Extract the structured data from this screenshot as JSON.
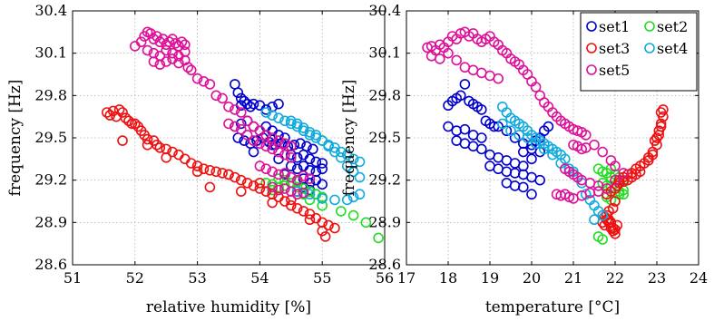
{
  "chart_data": [
    {
      "type": "scatter",
      "xlabel": "relative humidity [%]",
      "ylabel": "frequency [Hz]",
      "xlim": [
        51,
        56
      ],
      "ylim": [
        28.6,
        30.4
      ],
      "xticks": [
        "51",
        "52",
        "53",
        "54",
        "55",
        "56"
      ],
      "yticks": [
        "28.6",
        "28.9",
        "29.2",
        "29.5",
        "29.8",
        "30.1",
        "30.4"
      ],
      "grid": true,
      "series": [
        {
          "name": "set1",
          "color": "#0000cc",
          "x": [
            53.6,
            53.65,
            53.7,
            53.7,
            53.75,
            53.8,
            53.85,
            53.9,
            54.0,
            54.1,
            54.2,
            54.3,
            53.6,
            53.7,
            53.8,
            53.9,
            54.0,
            54.1,
            54.2,
            54.3,
            53.65,
            53.75,
            53.85,
            53.95,
            54.05,
            54.15,
            54.25,
            54.35,
            54.45,
            54.55,
            54.65,
            54.75,
            54.85,
            54.5,
            54.6,
            54.7,
            54.8,
            54.9,
            55.0,
            54.5,
            54.6,
            54.7,
            54.8,
            54.9,
            55.0,
            54.4,
            54.5,
            54.6,
            54.7,
            54.8,
            54.9,
            55.0,
            54.6,
            54.7,
            54.8,
            54.9,
            54.2,
            54.4,
            54.3,
            53.9
          ],
          "y": [
            29.88,
            29.82,
            29.78,
            29.73,
            29.76,
            29.74,
            29.72,
            29.74,
            29.73,
            29.7,
            29.72,
            29.74,
            29.58,
            29.6,
            29.62,
            29.58,
            29.55,
            29.58,
            29.55,
            29.52,
            29.5,
            29.48,
            29.46,
            29.48,
            29.5,
            29.47,
            29.45,
            29.46,
            29.44,
            29.45,
            29.46,
            29.44,
            29.42,
            29.38,
            29.36,
            29.38,
            29.35,
            29.33,
            29.32,
            29.3,
            29.28,
            29.3,
            29.27,
            29.26,
            29.28,
            29.24,
            29.22,
            29.2,
            29.21,
            29.18,
            29.2,
            29.17,
            29.12,
            29.15,
            29.13,
            29.1,
            29.45,
            29.5,
            29.35,
            29.4
          ]
        },
        {
          "name": "set2",
          "color": "#22dd22",
          "x": [
            54.1,
            54.2,
            54.3,
            54.4,
            54.5,
            54.6,
            54.7,
            54.8,
            54.9,
            55.0,
            55.3,
            55.5,
            55.7,
            55.9,
            54.4,
            54.5,
            54.6,
            54.3,
            54.2,
            54.7,
            54.8,
            55.0
          ],
          "y": [
            29.18,
            29.17,
            29.15,
            29.16,
            29.18,
            29.15,
            29.14,
            29.12,
            29.1,
            29.08,
            28.98,
            28.95,
            28.9,
            28.79,
            29.2,
            29.22,
            29.19,
            29.21,
            29.13,
            29.1,
            29.06,
            29.02
          ]
        },
        {
          "name": "set3",
          "color": "#ee1111",
          "x": [
            51.55,
            51.6,
            51.65,
            51.7,
            51.75,
            51.8,
            51.85,
            51.9,
            51.95,
            52.0,
            52.05,
            52.1,
            52.15,
            52.2,
            52.3,
            52.35,
            52.4,
            52.5,
            52.6,
            52.7,
            52.8,
            52.9,
            53.0,
            53.1,
            53.2,
            53.3,
            53.4,
            53.5,
            53.6,
            53.7,
            53.8,
            53.9,
            54.0,
            54.1,
            54.2,
            54.3,
            54.4,
            54.5,
            54.6,
            54.7,
            54.8,
            54.9,
            55.0,
            55.1,
            55.2,
            51.8,
            52.2,
            52.5,
            53.0,
            53.5,
            54.0,
            54.5,
            54.8,
            55.0,
            55.05,
            53.2,
            53.7,
            54.2
          ],
          "y": [
            29.68,
            29.66,
            29.69,
            29.65,
            29.7,
            29.68,
            29.64,
            29.62,
            29.6,
            29.6,
            29.58,
            29.55,
            29.52,
            29.49,
            29.48,
            29.45,
            29.43,
            29.42,
            29.4,
            29.38,
            29.35,
            29.32,
            29.3,
            29.28,
            29.27,
            29.26,
            29.25,
            29.24,
            29.22,
            29.2,
            29.18,
            29.16,
            29.14,
            29.12,
            29.1,
            29.08,
            29.05,
            29.02,
            29.0,
            28.98,
            28.96,
            28.93,
            28.9,
            28.88,
            28.86,
            29.48,
            29.45,
            29.36,
            29.26,
            29.24,
            29.18,
            29.06,
            28.92,
            28.84,
            28.8,
            29.15,
            29.12,
            29.04
          ]
        },
        {
          "name": "set4",
          "color": "#11aadd",
          "x": [
            54.1,
            54.2,
            54.3,
            54.4,
            54.5,
            54.6,
            54.7,
            54.8,
            54.9,
            55.0,
            55.1,
            55.2,
            55.3,
            55.4,
            55.5,
            55.6,
            54.5,
            54.6,
            54.7,
            54.8,
            54.9,
            55.0,
            55.1,
            55.2,
            55.3,
            55.4,
            55.5,
            55.6,
            54.6,
            54.8,
            55.0,
            55.2,
            55.4,
            55.5,
            55.6
          ],
          "y": [
            29.68,
            29.66,
            29.64,
            29.62,
            29.6,
            29.58,
            29.55,
            29.52,
            29.5,
            29.48,
            29.45,
            29.43,
            29.4,
            29.38,
            29.35,
            29.33,
            29.62,
            29.6,
            29.57,
            29.54,
            29.52,
            29.48,
            29.44,
            29.4,
            29.36,
            29.3,
            29.26,
            29.22,
            29.12,
            29.1,
            29.07,
            29.06,
            29.06,
            29.08,
            29.1
          ]
        },
        {
          "name": "set5",
          "color": "#dd1199",
          "x": [
            52.0,
            52.1,
            52.15,
            52.2,
            52.25,
            52.3,
            52.35,
            52.4,
            52.45,
            52.5,
            52.55,
            52.6,
            52.65,
            52.7,
            52.75,
            52.8,
            52.2,
            52.3,
            52.4,
            52.5,
            52.6,
            52.7,
            52.8,
            52.3,
            52.4,
            52.5,
            52.6,
            52.7,
            52.8,
            52.85,
            52.9,
            53.0,
            53.1,
            53.2,
            53.3,
            53.4,
            53.5,
            53.6,
            53.7,
            53.8,
            53.9,
            54.0,
            54.1,
            54.2,
            54.3,
            54.4,
            54.5,
            53.5,
            53.6,
            53.7,
            53.8,
            53.9,
            54.0,
            54.1,
            54.2,
            54.3,
            54.4,
            54.5,
            54.0,
            54.1,
            54.2,
            54.3,
            54.4,
            54.5,
            54.6,
            54.7,
            54.8,
            54.2,
            54.3,
            54.4,
            54.5,
            54.6,
            54.7
          ],
          "y": [
            30.15,
            30.18,
            30.22,
            30.25,
            30.24,
            30.2,
            30.22,
            30.18,
            30.2,
            30.16,
            30.18,
            30.2,
            30.17,
            30.15,
            30.18,
            30.16,
            30.12,
            30.1,
            30.08,
            30.12,
            30.1,
            30.08,
            30.11,
            30.04,
            30.02,
            30.04,
            30.06,
            30.03,
            30.05,
            30.0,
            29.98,
            29.92,
            29.9,
            29.88,
            29.8,
            29.78,
            29.72,
            29.7,
            29.68,
            29.62,
            29.58,
            29.55,
            29.52,
            29.5,
            29.48,
            29.46,
            29.44,
            29.6,
            29.58,
            29.56,
            29.52,
            29.48,
            29.46,
            29.44,
            29.42,
            29.4,
            29.38,
            29.36,
            29.3,
            29.28,
            29.26,
            29.24,
            29.25,
            29.22,
            29.2,
            29.23,
            29.21,
            29.15,
            29.13,
            29.14,
            29.12,
            29.1,
            29.11
          ]
        }
      ]
    },
    {
      "type": "scatter",
      "xlabel": "temperature [°C]",
      "ylabel": "frequency [Hz]",
      "xlim": [
        17,
        24
      ],
      "ylim": [
        28.6,
        30.4
      ],
      "xticks": [
        "17",
        "18",
        "19",
        "20",
        "21",
        "22",
        "23",
        "24"
      ],
      "yticks": [
        "28.6",
        "28.9",
        "29.2",
        "29.5",
        "29.8",
        "30.1",
        "30.4"
      ],
      "grid": true,
      "legend": "top-right",
      "series": [
        {
          "name": "set1",
          "color": "#0000cc",
          "x": [
            18.0,
            18.1,
            18.2,
            18.3,
            18.4,
            18.5,
            18.6,
            18.7,
            18.8,
            18.0,
            18.2,
            18.4,
            18.6,
            18.8,
            19.0,
            19.2,
            19.4,
            19.6,
            19.8,
            20.0,
            20.2,
            18.2,
            18.4,
            18.6,
            18.8,
            19.0,
            19.2,
            19.4,
            19.6,
            19.8,
            19.0,
            19.2,
            19.4,
            19.6,
            19.8,
            20.0,
            20.2,
            19.8,
            20.0,
            20.2,
            20.3,
            20.4,
            19.4,
            19.6,
            19.8,
            20.0,
            18.9,
            19.1,
            20.0,
            20.1
          ],
          "y": [
            29.73,
            29.76,
            29.78,
            29.8,
            29.88,
            29.76,
            29.74,
            29.72,
            29.7,
            29.58,
            29.55,
            29.56,
            29.52,
            29.5,
            29.6,
            29.58,
            29.55,
            29.5,
            29.46,
            29.42,
            29.4,
            29.48,
            29.46,
            29.44,
            29.42,
            29.38,
            29.36,
            29.34,
            29.32,
            29.3,
            29.3,
            29.28,
            29.26,
            29.25,
            29.24,
            29.22,
            29.2,
            29.4,
            29.45,
            29.5,
            29.55,
            29.58,
            29.18,
            29.16,
            29.15,
            29.1,
            29.62,
            29.58,
            29.35,
            29.48
          ]
        },
        {
          "name": "set2",
          "color": "#22dd22",
          "x": [
            21.6,
            21.7,
            21.8,
            21.9,
            22.0,
            22.1,
            22.2,
            21.7,
            21.8,
            21.9,
            22.0,
            22.1,
            22.2,
            21.8,
            21.9,
            22.0,
            22.1,
            22.2,
            21.6,
            21.9,
            22.1,
            21.7
          ],
          "y": [
            29.28,
            29.26,
            29.25,
            29.28,
            29.24,
            29.22,
            29.2,
            29.18,
            29.16,
            29.15,
            29.14,
            29.12,
            29.1,
            29.08,
            29.06,
            29.05,
            29.1,
            29.13,
            28.8,
            29.22,
            29.18,
            28.78
          ]
        },
        {
          "name": "set3",
          "color": "#ee1111",
          "x": [
            21.7,
            21.75,
            21.8,
            21.85,
            21.9,
            21.95,
            22.0,
            22.05,
            21.75,
            21.8,
            21.85,
            21.9,
            21.95,
            22.0,
            22.1,
            22.2,
            22.3,
            22.4,
            22.5,
            22.6,
            22.7,
            22.8,
            22.9,
            23.0,
            23.05,
            23.1,
            23.15,
            23.1,
            23.0,
            22.9,
            22.8,
            22.95,
            23.05,
            23.1,
            23.15,
            21.8,
            21.9,
            22.0,
            22.05,
            22.1,
            22.2,
            22.3,
            22.4,
            22.5,
            22.6,
            21.85,
            21.95,
            22.0
          ],
          "y": [
            28.9,
            28.88,
            28.92,
            28.9,
            28.86,
            28.84,
            28.85,
            28.88,
            28.94,
            28.95,
            28.92,
            28.9,
            28.86,
            28.82,
            29.2,
            29.22,
            29.24,
            29.25,
            29.28,
            29.3,
            29.32,
            29.34,
            29.4,
            29.5,
            29.55,
            29.6,
            29.65,
            29.68,
            29.45,
            29.38,
            29.36,
            29.48,
            29.52,
            29.58,
            29.7,
            29.1,
            29.12,
            29.14,
            29.16,
            29.18,
            29.19,
            29.2,
            29.22,
            29.24,
            29.26,
            28.98,
            29.0,
            29.05
          ]
        },
        {
          "name": "set4",
          "color": "#11aadd",
          "x": [
            19.3,
            19.4,
            19.5,
            19.6,
            19.7,
            19.8,
            19.9,
            20.0,
            20.1,
            20.2,
            20.3,
            20.4,
            20.5,
            20.6,
            20.7,
            20.8,
            19.3,
            19.5,
            19.7,
            19.9,
            20.1,
            20.3,
            20.5,
            20.7,
            20.9,
            21.0,
            21.1,
            21.2,
            21.3,
            21.4,
            21.5,
            21.6,
            21.7,
            21.5
          ],
          "y": [
            29.72,
            29.68,
            29.64,
            29.62,
            29.6,
            29.58,
            29.55,
            29.52,
            29.5,
            29.48,
            29.46,
            29.44,
            29.42,
            29.4,
            29.38,
            29.35,
            29.6,
            29.55,
            29.52,
            29.5,
            29.46,
            29.42,
            29.38,
            29.32,
            29.28,
            29.26,
            29.22,
            29.18,
            29.1,
            29.06,
            29.02,
            28.98,
            28.95,
            28.92
          ]
        },
        {
          "name": "set5",
          "color": "#dd1199",
          "x": [
            17.5,
            17.6,
            17.7,
            17.8,
            17.9,
            18.0,
            18.1,
            18.2,
            18.3,
            18.4,
            18.5,
            18.6,
            18.7,
            18.8,
            18.9,
            19.0,
            19.1,
            19.2,
            19.3,
            19.4,
            19.5,
            19.6,
            19.7,
            19.8,
            19.9,
            20.0,
            20.1,
            20.2,
            20.3,
            20.4,
            20.5,
            20.6,
            20.7,
            20.8,
            20.9,
            21.0,
            21.1,
            21.2,
            21.3,
            21.5,
            21.7,
            21.9,
            22.0,
            17.6,
            17.8,
            18.0,
            18.2,
            18.4,
            18.6,
            18.8,
            19.0,
            19.2,
            21.0,
            21.1,
            21.2,
            21.3,
            20.8,
            20.9,
            21.0,
            21.1,
            21.2,
            21.4,
            21.6,
            21.8,
            20.6,
            20.7,
            20.8,
            20.9,
            21.0,
            21.2,
            21.4,
            21.6,
            22.0,
            22.2
          ],
          "y": [
            30.14,
            30.15,
            30.12,
            30.16,
            30.14,
            30.18,
            30.22,
            30.2,
            30.24,
            30.25,
            30.22,
            30.24,
            30.2,
            30.18,
            30.2,
            30.22,
            30.18,
            30.16,
            30.12,
            30.1,
            30.06,
            30.04,
            30.02,
            29.98,
            29.95,
            29.9,
            29.86,
            29.8,
            29.75,
            29.72,
            29.68,
            29.65,
            29.62,
            29.6,
            29.58,
            29.56,
            29.55,
            29.54,
            29.52,
            29.45,
            29.4,
            29.34,
            29.3,
            30.08,
            30.06,
            30.1,
            30.05,
            30.0,
            29.98,
            29.96,
            29.94,
            29.92,
            29.45,
            29.44,
            29.42,
            29.43,
            29.28,
            29.26,
            29.24,
            29.22,
            29.2,
            29.18,
            29.16,
            29.14,
            29.1,
            29.09,
            29.1,
            29.08,
            29.07,
            29.09,
            29.11,
            29.12,
            29.2,
            29.25
          ]
        }
      ]
    }
  ]
}
